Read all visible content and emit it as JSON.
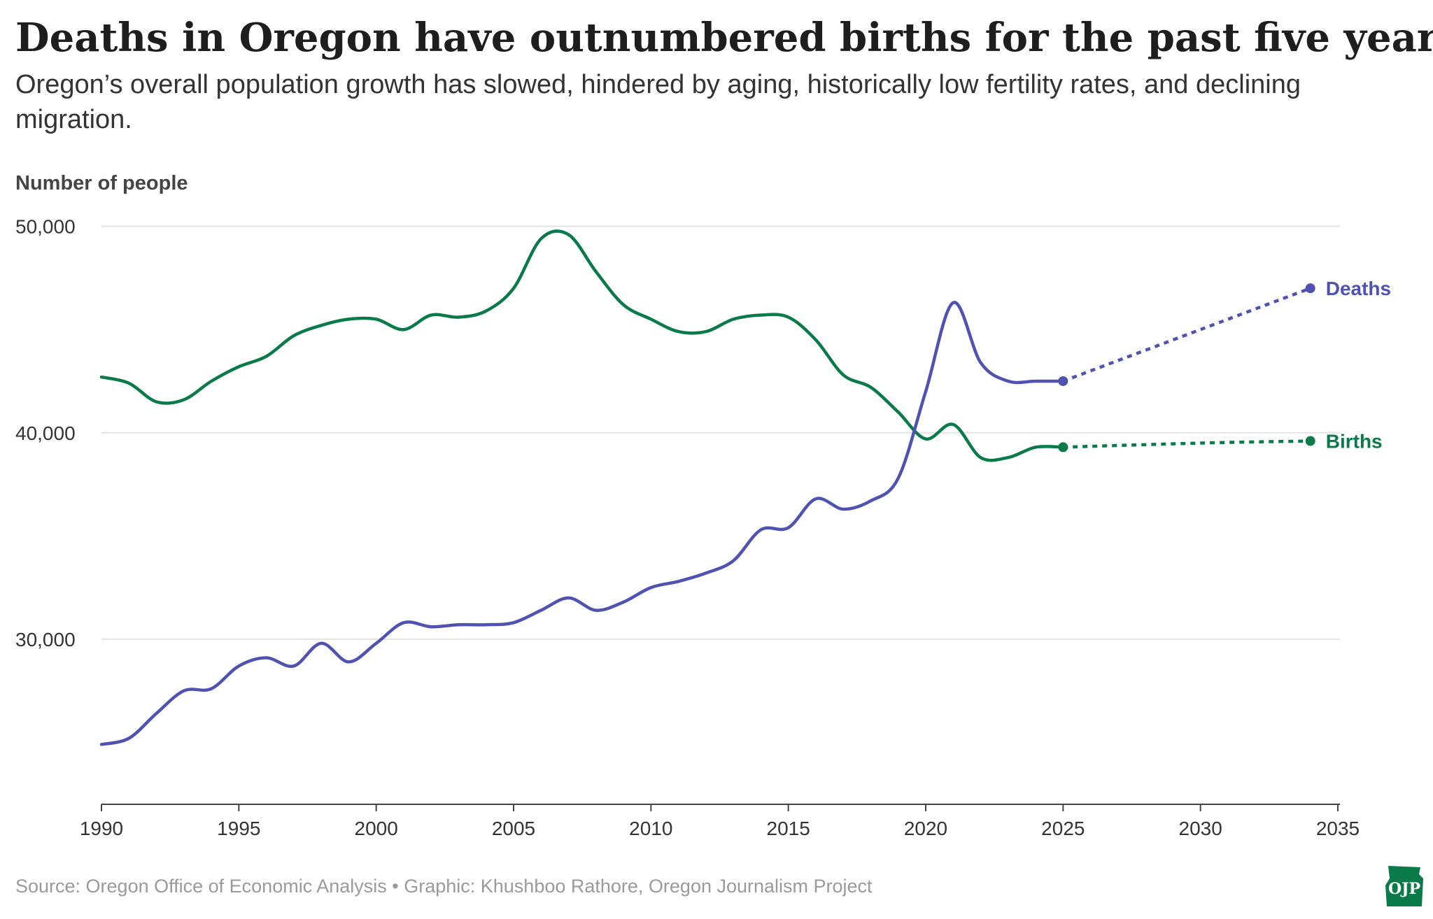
{
  "title": "Deaths in Oregon have outnumbered births for the past five years.",
  "subtitle": "Oregon’s overall population growth has slowed, hindered by aging, historically low fertility rates, and declining migration.",
  "source": "Source: Oregon Office of Economic Analysis • Graphic: Khushboo Rathore, Oregon Journalism Project",
  "logo_text": "OJP",
  "colors": {
    "deaths": "#4f52b0",
    "births": "#0a7a4a",
    "grid": "#e3e3e3",
    "axis": "#444444"
  },
  "chart_data": {
    "type": "line",
    "title": "Deaths in Oregon have outnumbered births for the past five years.",
    "ylabel": "Number of people",
    "xlabel": "",
    "xlim": [
      1990,
      2035
    ],
    "ylim": [
      22000,
      50800
    ],
    "x_ticks": [
      1990,
      1995,
      2000,
      2005,
      2010,
      2015,
      2020,
      2025,
      2030,
      2035
    ],
    "y_ticks": [
      30000,
      40000,
      50000
    ],
    "y_tick_labels": [
      "30,000",
      "40,000",
      "50,000"
    ],
    "grid": "horizontal",
    "legend": "direct labels at line ends",
    "series": [
      {
        "name": "Births",
        "color": "#0a7a4a",
        "actual": [
          [
            1990,
            42700
          ],
          [
            1991,
            42400
          ],
          [
            1992,
            41500
          ],
          [
            1993,
            41600
          ],
          [
            1994,
            42500
          ],
          [
            1995,
            43200
          ],
          [
            1996,
            43700
          ],
          [
            1997,
            44700
          ],
          [
            1998,
            45200
          ],
          [
            1999,
            45500
          ],
          [
            2000,
            45500
          ],
          [
            2001,
            45000
          ],
          [
            2002,
            45700
          ],
          [
            2003,
            45600
          ],
          [
            2004,
            45900
          ],
          [
            2005,
            47000
          ],
          [
            2006,
            49400
          ],
          [
            2007,
            49600
          ],
          [
            2008,
            47800
          ],
          [
            2009,
            46200
          ],
          [
            2010,
            45500
          ],
          [
            2011,
            44900
          ],
          [
            2012,
            44900
          ],
          [
            2013,
            45500
          ],
          [
            2014,
            45700
          ],
          [
            2015,
            45600
          ],
          [
            2016,
            44500
          ],
          [
            2017,
            42800
          ],
          [
            2018,
            42200
          ],
          [
            2019,
            41000
          ],
          [
            2020,
            39700
          ],
          [
            2021,
            40400
          ],
          [
            2022,
            38800
          ],
          [
            2023,
            38800
          ],
          [
            2024,
            39300
          ],
          [
            2025,
            39300
          ]
        ],
        "forecast": [
          [
            2025,
            39300
          ],
          [
            2030,
            39500
          ],
          [
            2034,
            39600
          ]
        ]
      },
      {
        "name": "Deaths",
        "color": "#4f52b0",
        "actual": [
          [
            1990,
            24900
          ],
          [
            1991,
            25200
          ],
          [
            1992,
            26400
          ],
          [
            1993,
            27500
          ],
          [
            1994,
            27600
          ],
          [
            1995,
            28700
          ],
          [
            1996,
            29100
          ],
          [
            1997,
            28700
          ],
          [
            1998,
            29800
          ],
          [
            1999,
            28900
          ],
          [
            2000,
            29800
          ],
          [
            2001,
            30800
          ],
          [
            2002,
            30600
          ],
          [
            2003,
            30700
          ],
          [
            2004,
            30700
          ],
          [
            2005,
            30800
          ],
          [
            2006,
            31400
          ],
          [
            2007,
            32000
          ],
          [
            2008,
            31400
          ],
          [
            2009,
            31800
          ],
          [
            2010,
            32500
          ],
          [
            2011,
            32800
          ],
          [
            2012,
            33200
          ],
          [
            2013,
            33800
          ],
          [
            2014,
            35300
          ],
          [
            2015,
            35400
          ],
          [
            2016,
            36800
          ],
          [
            2017,
            36300
          ],
          [
            2018,
            36700
          ],
          [
            2019,
            37800
          ],
          [
            2020,
            42000
          ],
          [
            2021,
            46300
          ],
          [
            2022,
            43400
          ],
          [
            2023,
            42500
          ],
          [
            2024,
            42500
          ],
          [
            2025,
            42500
          ]
        ],
        "forecast": [
          [
            2025,
            42500
          ],
          [
            2030,
            45000
          ],
          [
            2034,
            47000
          ]
        ]
      }
    ]
  }
}
